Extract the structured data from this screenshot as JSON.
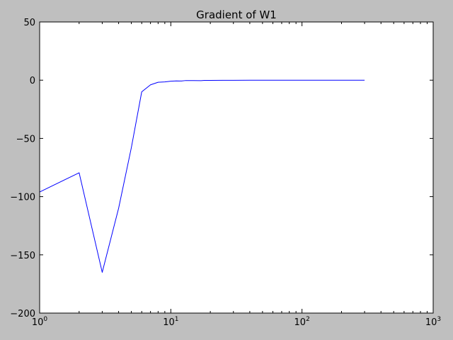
{
  "chart_data": {
    "type": "line",
    "title": "Gradient of W1",
    "xlabel": "",
    "ylabel": "",
    "x_scale": "log",
    "xlim": [
      1,
      1000
    ],
    "ylim": [
      -200,
      50
    ],
    "x_ticks": [
      {
        "value": 1,
        "base": "10",
        "exp": "0"
      },
      {
        "value": 10,
        "base": "10",
        "exp": "1"
      },
      {
        "value": 100,
        "base": "10",
        "exp": "2"
      },
      {
        "value": 1000,
        "base": "10",
        "exp": "3"
      }
    ],
    "y_ticks": [
      50,
      0,
      -50,
      -100,
      -150,
      -200
    ],
    "grid": false,
    "line_color": "#0000ff",
    "series": [
      {
        "x": [
          1,
          2,
          3,
          4,
          5,
          6,
          7,
          8,
          9,
          10,
          11,
          12,
          13,
          15,
          17,
          18,
          20,
          25,
          30,
          40,
          50,
          70,
          100,
          150,
          200,
          300
        ],
        "y": [
          -96,
          -79.5,
          -165,
          -110,
          -58,
          -10,
          -4,
          -1.8,
          -1.5,
          -0.9,
          -0.6,
          -0.7,
          -0.3,
          -0.3,
          -0.4,
          -0.2,
          -0.2,
          -0.1,
          -0.1,
          -0.05,
          0,
          0,
          0,
          0,
          0,
          0
        ]
      }
    ]
  }
}
